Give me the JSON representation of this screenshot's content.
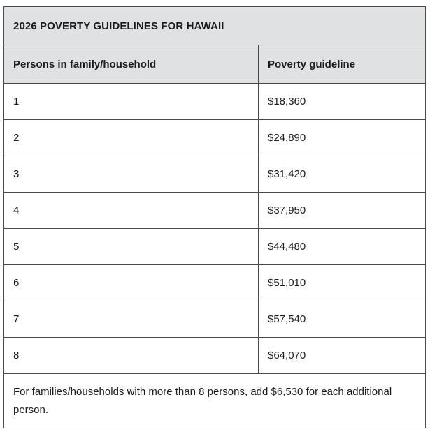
{
  "table": {
    "caption": "2026 POVERTY GUIDELINES FOR HAWAII",
    "headers": [
      "Persons in family/household",
      "Poverty guideline"
    ],
    "rows": [
      {
        "persons": "1",
        "guideline": "$18,360"
      },
      {
        "persons": "2",
        "guideline": "$24,890"
      },
      {
        "persons": "3",
        "guideline": "$31,420"
      },
      {
        "persons": "4",
        "guideline": "$37,950"
      },
      {
        "persons": "5",
        "guideline": "$44,480"
      },
      {
        "persons": "6",
        "guideline": "$51,010"
      },
      {
        "persons": "7",
        "guideline": "$57,540"
      },
      {
        "persons": "8",
        "guideline": "$64,070"
      }
    ],
    "footnote": "For families/households with more than 8 persons, add $6,530 for each additional person."
  }
}
